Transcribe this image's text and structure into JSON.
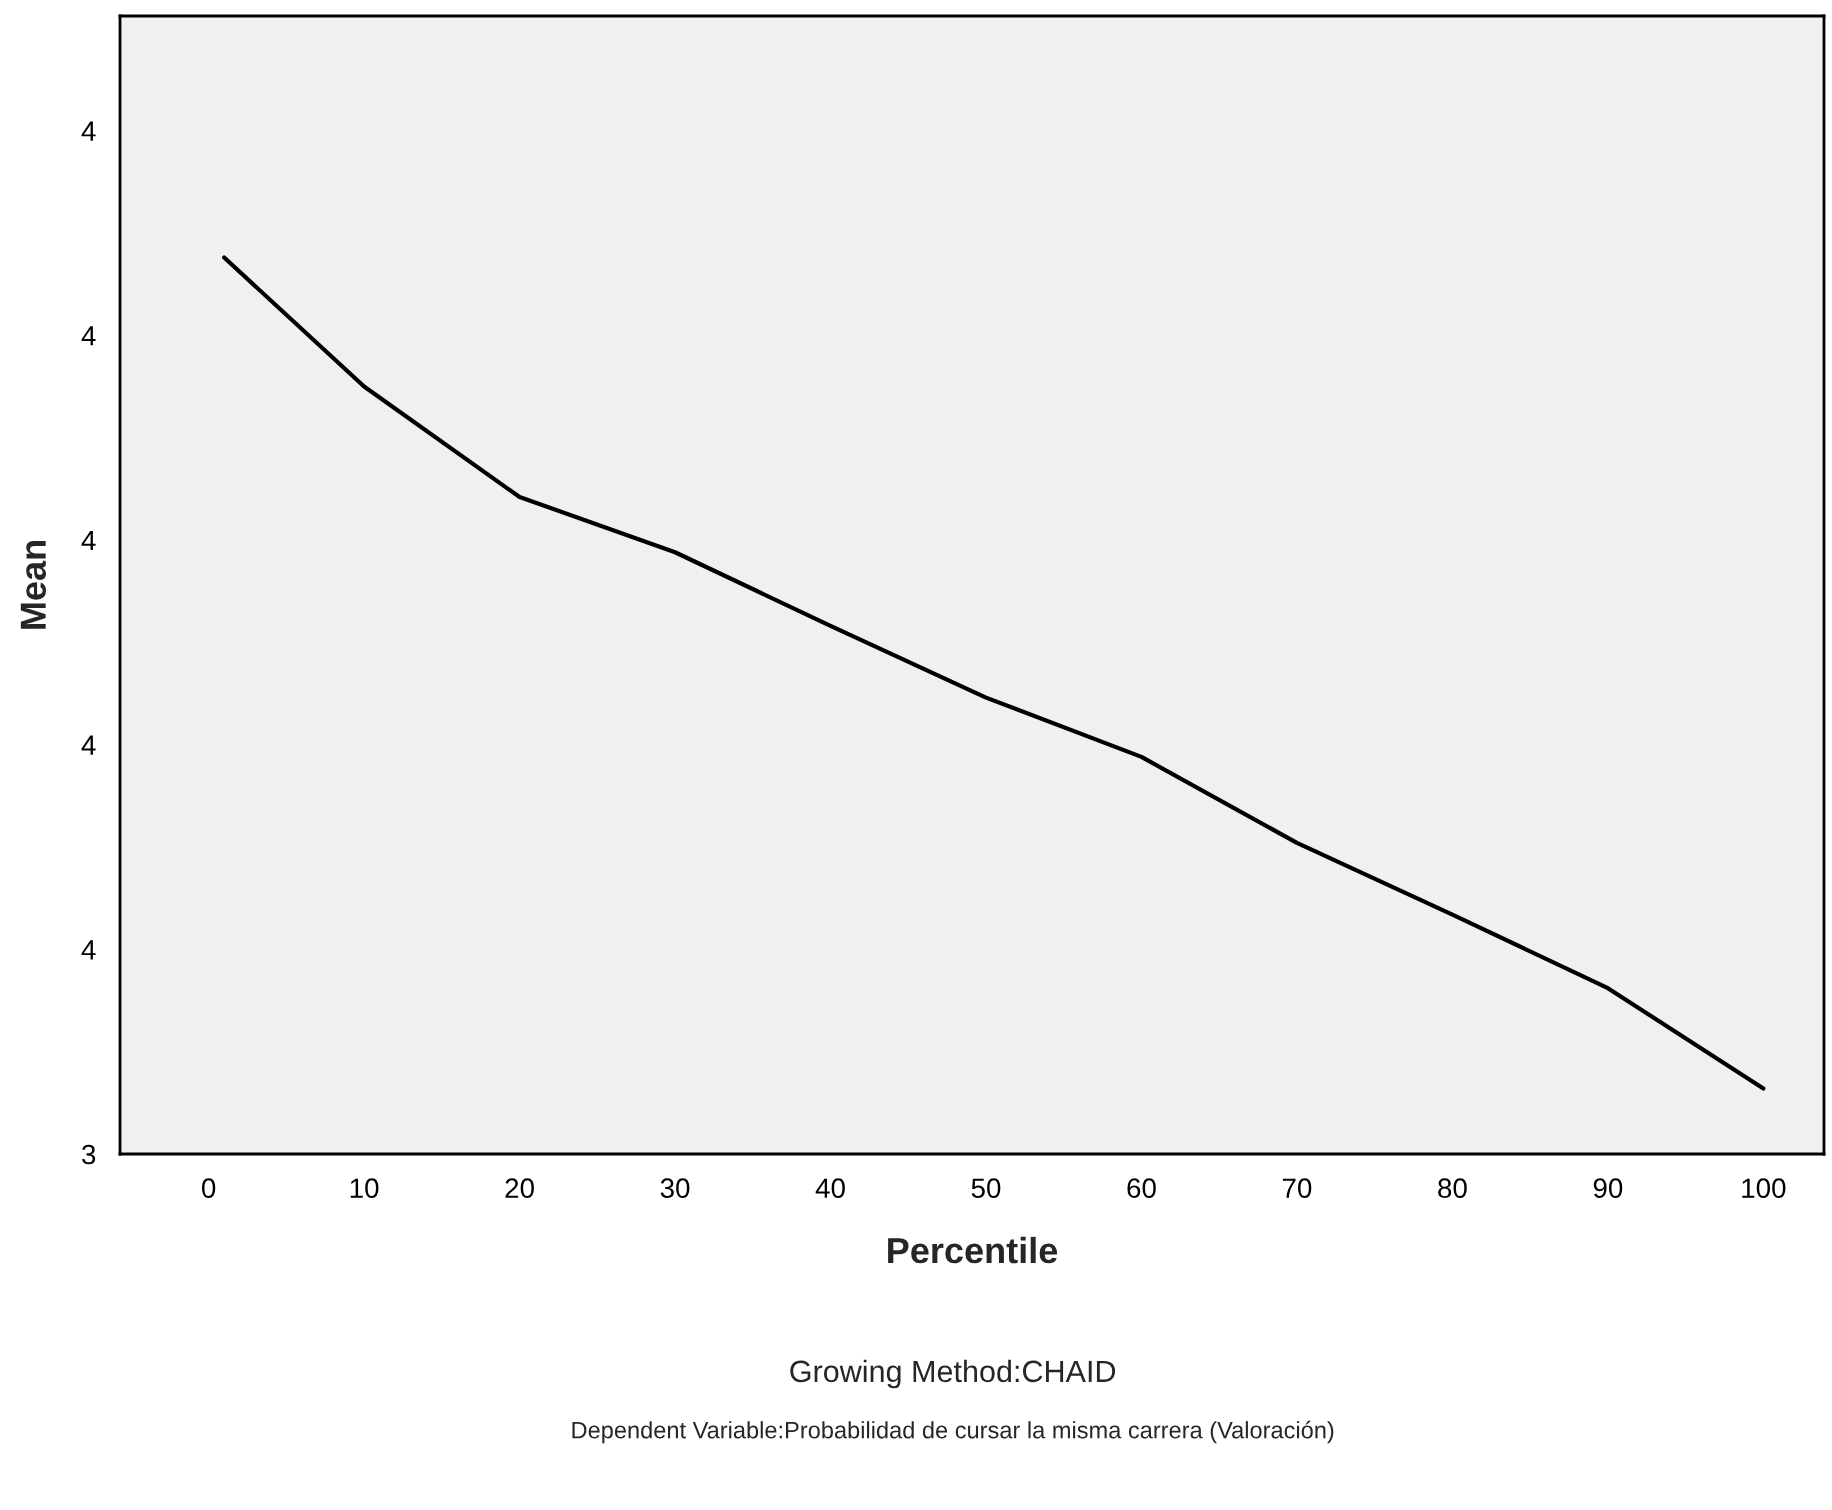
{
  "chart_data": {
    "type": "line",
    "xlabel": "Percentile",
    "ylabel": "Mean",
    "x": [
      1,
      10,
      20,
      30,
      40,
      50,
      60,
      70,
      80,
      90,
      100
    ],
    "series": [
      {
        "color": "#000000",
        "values": [
          3.838,
          3.775,
          3.721,
          3.694,
          3.658,
          3.623,
          3.594,
          3.552,
          3.517,
          3.481,
          3.432
        ]
      }
    ],
    "xlim": [
      -5.7,
      103.9
    ],
    "xticks": [
      0,
      10,
      20,
      30,
      40,
      50,
      60,
      70,
      80,
      90,
      100
    ],
    "ylim": [
      3.4,
      3.956
    ],
    "yticks": [
      {
        "value": 3.4,
        "label": "3"
      },
      {
        "value": 3.5,
        "label": "4"
      },
      {
        "value": 3.6,
        "label": "4"
      },
      {
        "value": 3.7,
        "label": "4"
      },
      {
        "value": 3.8,
        "label": "4"
      },
      {
        "value": 3.9,
        "label": "4"
      }
    ],
    "grid": false,
    "legend": false,
    "marker": "none",
    "line_style": "solid",
    "annotations": [
      "Growing Method:CHAID",
      "Dependent Variable:Probabilidad de cursar la misma carrera (Valoración)"
    ]
  }
}
